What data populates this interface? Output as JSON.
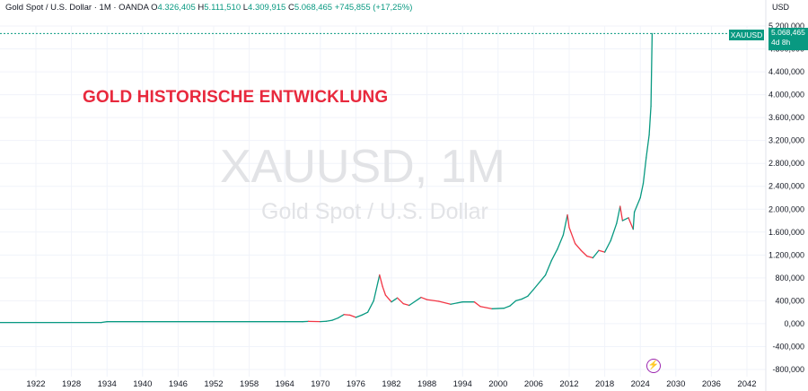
{
  "header": {
    "title": "Gold Spot / U.S. Dollar · 1M · OANDA",
    "o_label": "O",
    "o_value": "4.326,405",
    "h_label": "H",
    "h_value": "5.111,510",
    "l_label": "L",
    "l_value": "4.309,915",
    "c_label": "C",
    "c_value": "5.068,465",
    "change": "+745,855 (+17,25%)"
  },
  "annotation": {
    "headline": "GOLD HISTORISCHE ENTWICKLUNG"
  },
  "watermark": {
    "main": "XAUUSD, 1M",
    "sub": "Gold Spot / U.S. Dollar"
  },
  "axis": {
    "unit": "USD"
  },
  "price_line": {
    "symbol": "XAUUSD",
    "price": "5.068,465",
    "countdown": "4d 8h"
  },
  "colors": {
    "up": "#089981",
    "down": "#f23645",
    "accent": "#e8293d",
    "grid": "#f0f3fa"
  },
  "event_icon": "lightning-icon",
  "chart_data": {
    "type": "line",
    "x_ticks": [
      "1922",
      "1928",
      "1934",
      "1940",
      "1946",
      "1952",
      "1958",
      "1964",
      "1970",
      "1976",
      "1982",
      "1988",
      "1994",
      "2000",
      "2006",
      "2012",
      "2018",
      "2024",
      "2030",
      "2036",
      "2042"
    ],
    "y_ticks": [
      "5.200,000",
      "4.800,000",
      "4.400,000",
      "4.000,000",
      "3.600,000",
      "3.200,000",
      "2.800,000",
      "2.400,000",
      "2.000,000",
      "1.600,000",
      "1.200,000",
      "800,000",
      "400,000",
      "0,000",
      "-400,000",
      "-800,000"
    ],
    "y_tick_values": [
      5200,
      4800,
      4400,
      4000,
      3600,
      3200,
      2800,
      2400,
      2000,
      1600,
      1200,
      800,
      400,
      0,
      -400,
      -800
    ],
    "xlim": [
      1915,
      2047
    ],
    "ylim": [
      -850,
      5300
    ],
    "last_price": 5068.465,
    "series": [
      {
        "x": [
          1915,
          1933,
          1934,
          1967,
          1968,
          1970,
          1971,
          1972,
          1973,
          1974,
          1975,
          1976,
          1977,
          1978,
          1979,
          1980,
          1980.5,
          1981,
          1982,
          1983,
          1984,
          1985,
          1987,
          1988,
          1990,
          1992,
          1994,
          1996,
          1997,
          1999,
          2001,
          2002,
          2003,
          2004,
          2005,
          2006,
          2008,
          2009,
          2010,
          2011,
          2011.7,
          2012,
          2013,
          2014,
          2015,
          2016,
          2017,
          2018,
          2019,
          2020,
          2020.6,
          2021,
          2022,
          2022.8,
          2023,
          2024,
          2024.5,
          2025,
          2025.5,
          2025.8,
          2026
        ],
        "values": [
          20,
          20,
          35,
          35,
          40,
          36,
          42,
          60,
          100,
          160,
          150,
          110,
          150,
          200,
          400,
          850,
          650,
          500,
          380,
          450,
          350,
          320,
          460,
          420,
          390,
          340,
          380,
          380,
          300,
          260,
          270,
          310,
          400,
          430,
          480,
          600,
          850,
          1100,
          1300,
          1550,
          1900,
          1680,
          1400,
          1280,
          1180,
          1150,
          1280,
          1250,
          1450,
          1750,
          2050,
          1800,
          1850,
          1650,
          1950,
          2200,
          2450,
          2900,
          3300,
          3800,
          5068
        ]
      }
    ]
  }
}
